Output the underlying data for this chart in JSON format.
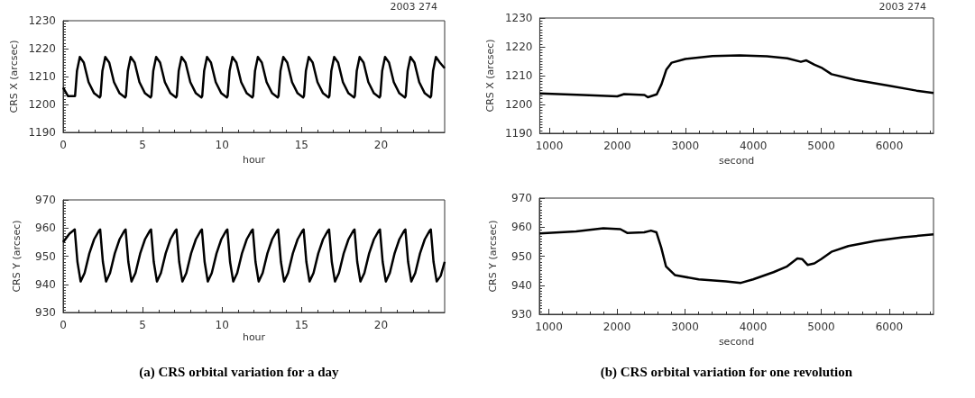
{
  "chart_data": [
    {
      "type": "line",
      "xlabel": "hour",
      "ylabel": "CRS X (arcsec)",
      "annotations": [
        "2003 274"
      ],
      "color": "#000000",
      "marker": "none",
      "grid": false,
      "xlim": [
        0,
        24
      ],
      "xticks": [
        0,
        5,
        10,
        15,
        20
      ],
      "ylim": [
        1190,
        1230
      ],
      "yticks": [
        1190,
        1200,
        1210,
        1220,
        1230
      ],
      "x": [
        0,
        0.3,
        0.75,
        0.87,
        1.05,
        1.3,
        1.6,
        1.95,
        2.3,
        2.35,
        2.47,
        2.65,
        2.9,
        3.2,
        3.55,
        3.9,
        3.95,
        4.07,
        4.25,
        4.5,
        4.8,
        5.15,
        5.5,
        5.55,
        5.67,
        5.85,
        6.1,
        6.4,
        6.75,
        7.1,
        7.15,
        7.27,
        7.45,
        7.7,
        8,
        8.35,
        8.7,
        8.75,
        8.87,
        9.05,
        9.3,
        9.6,
        9.95,
        10.3,
        10.35,
        10.47,
        10.65,
        10.9,
        11.2,
        11.55,
        11.9,
        11.95,
        12.07,
        12.25,
        12.5,
        12.8,
        13.15,
        13.5,
        13.55,
        13.67,
        13.85,
        14.1,
        14.4,
        14.75,
        15.1,
        15.15,
        15.27,
        15.45,
        15.7,
        16,
        16.35,
        16.7,
        16.75,
        16.87,
        17.05,
        17.3,
        17.6,
        17.95,
        18.3,
        18.35,
        18.47,
        18.65,
        18.9,
        19.2,
        19.55,
        19.9,
        19.95,
        20.07,
        20.25,
        20.5,
        20.8,
        21.15,
        21.5,
        21.55,
        21.67,
        21.85,
        22.1,
        22.4,
        22.75,
        23.1,
        23.15,
        23.27,
        23.45,
        23.7,
        24
      ],
      "values": [
        1206,
        1203,
        1203,
        1212,
        1217,
        1215,
        1208,
        1204,
        1202.5,
        1203,
        1212,
        1217,
        1215,
        1208,
        1204,
        1202.5,
        1203,
        1212,
        1217,
        1215,
        1208,
        1204,
        1202.5,
        1203,
        1212,
        1217,
        1215,
        1208,
        1204,
        1202.5,
        1203,
        1212,
        1217,
        1215,
        1208,
        1204,
        1202.5,
        1203,
        1212,
        1217,
        1215,
        1208,
        1204,
        1202.5,
        1203,
        1212,
        1217,
        1215,
        1208,
        1204,
        1202.5,
        1203,
        1212,
        1217,
        1215,
        1208,
        1204,
        1202.5,
        1203,
        1212,
        1217,
        1215,
        1208,
        1204,
        1202.5,
        1203,
        1212,
        1217,
        1215,
        1208,
        1204,
        1202.5,
        1203,
        1212,
        1217,
        1215,
        1208,
        1204,
        1202.5,
        1203,
        1212,
        1217,
        1215,
        1208,
        1204,
        1202.5,
        1203,
        1212,
        1217,
        1215,
        1208,
        1204,
        1202.5,
        1203,
        1212,
        1217,
        1215,
        1208,
        1204,
        1202.5,
        1203,
        1212,
        1217,
        1215,
        1213
      ]
    },
    {
      "type": "line",
      "xlabel": "hour",
      "ylabel": "CRS Y (arcsec)",
      "annotations": [
        "(a) CRS orbital variation for a day"
      ],
      "color": "#000000",
      "marker": "none",
      "grid": false,
      "xlim": [
        0,
        24
      ],
      "xticks": [
        0,
        5,
        10,
        15,
        20
      ],
      "ylim": [
        930,
        970
      ],
      "yticks": [
        930,
        940,
        950,
        960,
        970
      ],
      "x": [
        0,
        0.4,
        0.73,
        0.9,
        1.1,
        1.35,
        1.65,
        1.95,
        2.25,
        2.33,
        2.5,
        2.7,
        2.95,
        3.25,
        3.55,
        3.85,
        3.93,
        4.1,
        4.3,
        4.55,
        4.85,
        5.15,
        5.45,
        5.53,
        5.7,
        5.9,
        6.15,
        6.45,
        6.75,
        7.05,
        7.13,
        7.3,
        7.5,
        7.75,
        8.05,
        8.35,
        8.65,
        8.73,
        8.9,
        9.1,
        9.35,
        9.65,
        9.95,
        10.25,
        10.33,
        10.5,
        10.7,
        10.95,
        11.25,
        11.55,
        11.85,
        11.93,
        12.1,
        12.3,
        12.55,
        12.85,
        13.15,
        13.45,
        13.53,
        13.7,
        13.9,
        14.15,
        14.45,
        14.75,
        15.05,
        15.13,
        15.3,
        15.5,
        15.75,
        16.05,
        16.35,
        16.65,
        16.73,
        16.9,
        17.1,
        17.35,
        17.65,
        17.95,
        18.25,
        18.33,
        18.5,
        18.7,
        18.95,
        19.25,
        19.55,
        19.85,
        19.93,
        20.1,
        20.3,
        20.55,
        20.85,
        21.15,
        21.45,
        21.53,
        21.7,
        21.9,
        22.15,
        22.45,
        22.75,
        23.05,
        23.13,
        23.3,
        23.5,
        23.75,
        24
      ],
      "values": [
        955,
        958,
        959.5,
        948,
        941,
        944,
        951,
        956,
        959,
        959.5,
        948,
        941,
        944,
        951,
        956,
        959,
        959.5,
        948,
        941,
        944,
        951,
        956,
        959,
        959.5,
        948,
        941,
        944,
        951,
        956,
        959,
        959.5,
        948,
        941,
        944,
        951,
        956,
        959,
        959.5,
        948,
        941,
        944,
        951,
        956,
        959,
        959.5,
        948,
        941,
        944,
        951,
        956,
        959,
        959.5,
        948,
        941,
        944,
        951,
        956,
        959,
        959.5,
        948,
        941,
        944,
        951,
        956,
        959,
        959.5,
        948,
        941,
        944,
        951,
        956,
        959,
        959.5,
        948,
        941,
        944,
        951,
        956,
        959,
        959.5,
        948,
        941,
        944,
        951,
        956,
        959,
        959.5,
        948,
        941,
        944,
        951,
        956,
        959,
        959.5,
        948,
        941,
        944,
        951,
        956,
        959,
        959.5,
        948,
        941,
        943,
        948
      ]
    },
    {
      "type": "line",
      "xlabel": "second",
      "ylabel": "CRS X (arcsec)",
      "annotations": [
        "2003 274"
      ],
      "color": "#000000",
      "marker": "none",
      "grid": false,
      "xlim": [
        860,
        6650
      ],
      "xticks": [
        1000,
        2000,
        3000,
        4000,
        5000,
        6000
      ],
      "ylim": [
        1190,
        1230
      ],
      "yticks": [
        1190,
        1200,
        1210,
        1220,
        1230
      ],
      "x": [
        860,
        1500,
        2000,
        2100,
        2400,
        2450,
        2580,
        2650,
        2720,
        2800,
        3000,
        3400,
        3800,
        4200,
        4500,
        4700,
        4780,
        4900,
        5000,
        5150,
        5500,
        6000,
        6400,
        6650
      ],
      "values": [
        1203.8,
        1203.3,
        1202.8,
        1203.6,
        1203.3,
        1202.5,
        1203.5,
        1207,
        1212,
        1214.5,
        1215.8,
        1216.8,
        1217,
        1216.7,
        1216,
        1214.8,
        1215.3,
        1213.8,
        1212.8,
        1210.5,
        1208.5,
        1206.5,
        1204.8,
        1204
      ]
    },
    {
      "type": "line",
      "xlabel": "second",
      "ylabel": "CRS Y (arcsec)",
      "annotations": [
        "(b) CRS orbital variation for one revolution"
      ],
      "color": "#000000",
      "marker": "none",
      "grid": false,
      "xlim": [
        860,
        6650
      ],
      "xticks": [
        1000,
        2000,
        3000,
        4000,
        5000,
        6000
      ],
      "ylim": [
        930,
        970
      ],
      "yticks": [
        930,
        940,
        950,
        960,
        970
      ],
      "x": [
        860,
        1400,
        1800,
        2050,
        2150,
        2400,
        2500,
        2580,
        2650,
        2720,
        2850,
        3200,
        3600,
        3820,
        4000,
        4300,
        4500,
        4650,
        4720,
        4800,
        4900,
        5000,
        5150,
        5400,
        5800,
        6200,
        6650
      ],
      "values": [
        957.8,
        958.5,
        959.6,
        959.3,
        958,
        958.2,
        958.8,
        958.2,
        953,
        946.5,
        943.5,
        942,
        941.3,
        940.8,
        942,
        944.5,
        946.5,
        949.2,
        949,
        947,
        947.5,
        949,
        951.5,
        953.5,
        955.3,
        956.5,
        957.5
      ]
    }
  ]
}
